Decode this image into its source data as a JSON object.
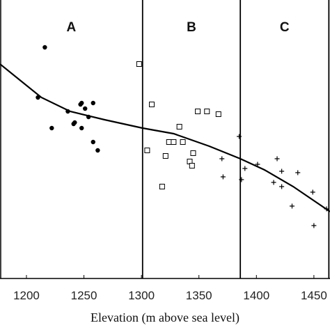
{
  "chart_data": {
    "type": "scatter",
    "x_label": "Elevation (m above sea level)",
    "xlim": [
      1177,
      1464
    ],
    "ylim": [
      0,
      100
    ],
    "xticks": [
      1200,
      1250,
      1300,
      1350,
      1400,
      1450
    ],
    "boundaries": [
      1301,
      1386,
      1463
    ],
    "region_labels": [
      "A",
      "B",
      "C"
    ],
    "color": "#000000",
    "series": [
      {
        "marker": "circle",
        "x": [
          1216,
          1210,
          1222,
          1236,
          1241,
          1242,
          1247,
          1248,
          1251,
          1248,
          1254,
          1258,
          1258,
          1262
        ],
        "y": [
          83,
          65,
          54,
          60,
          55.5,
          56,
          62.5,
          63,
          61,
          54,
          58,
          63,
          49,
          46
        ]
      },
      {
        "marker": "square",
        "x": [
          1298,
          1309,
          1305,
          1321,
          1324,
          1328,
          1336,
          1333,
          1349,
          1357,
          1367,
          1345,
          1342,
          1344,
          1318
        ],
        "y": [
          77,
          62.5,
          46,
          44,
          49,
          49,
          49,
          54.5,
          60,
          60,
          59,
          45,
          42,
          40.5,
          33
        ]
      },
      {
        "marker": "plus",
        "x": [
          1370,
          1371,
          1387,
          1390,
          1401,
          1418,
          1422,
          1415,
          1422,
          1436,
          1431,
          1449,
          1450,
          1461,
          1385
        ],
        "y": [
          43,
          36.5,
          35.5,
          39.5,
          41,
          43,
          38.5,
          34.5,
          33,
          38,
          26,
          31,
          19,
          25,
          51
        ]
      }
    ],
    "curve": {
      "x": [
        1177,
        1195,
        1213,
        1238,
        1268,
        1301,
        1328,
        1359,
        1386,
        1407,
        1432,
        1464
      ],
      "y": [
        77,
        71,
        65,
        60,
        57,
        54,
        52,
        47.5,
        43,
        39,
        33,
        24
      ]
    }
  }
}
